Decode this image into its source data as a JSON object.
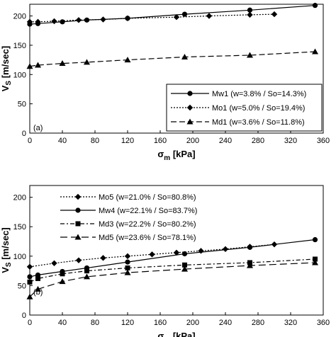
{
  "chart_data": [
    {
      "type": "line",
      "panel_label": "(a)",
      "xlabel_main": "σ",
      "xlabel_sub": "m",
      "xlabel_unit": " [kPa]",
      "ylabel_main": "V",
      "ylabel_sub": "S",
      "ylabel_unit": " [m/sec]",
      "xlim": [
        0,
        360
      ],
      "ylim": [
        0,
        220
      ],
      "xticks": [
        "0",
        "40",
        "80",
        "120",
        "160",
        "200",
        "240",
        "280",
        "320",
        "360"
      ],
      "yticks": [
        "0",
        "50",
        "100",
        "150",
        "200"
      ],
      "legend_position": "bottom-right",
      "series": [
        {
          "name": "Mw1 (w=3.8% / So=14.3%)",
          "marker": "circle",
          "dash": "solid",
          "x": [
            0,
            10,
            40,
            70,
            120,
            190,
            270,
            350
          ],
          "y": [
            186,
            187,
            190,
            193,
            196,
            203,
            210,
            218
          ]
        },
        {
          "name": "Mo1 (w=5.0% / So=19.4%)",
          "marker": "diamond",
          "dash": "dotted",
          "x": [
            0,
            10,
            30,
            60,
            90,
            120,
            180,
            220,
            270,
            300
          ],
          "y": [
            190,
            190,
            191,
            193,
            194,
            196,
            198,
            200,
            202,
            203
          ]
        },
        {
          "name": "Md1 (w=3.6% / So=11.8%)",
          "marker": "triangle",
          "dash": "dashed",
          "x": [
            0,
            10,
            40,
            70,
            120,
            190,
            270,
            350
          ],
          "y": [
            114,
            116,
            119,
            121,
            125,
            130,
            133,
            139
          ]
        }
      ]
    },
    {
      "type": "line",
      "panel_label": "(b)",
      "xlabel_main": "σ",
      "xlabel_sub": "m",
      "xlabel_unit": " [kPa]",
      "ylabel_main": "V",
      "ylabel_sub": "S",
      "ylabel_unit": " [m/sec]",
      "xlim": [
        0,
        360
      ],
      "ylim": [
        0,
        220
      ],
      "xticks": [
        "0",
        "40",
        "80",
        "120",
        "160",
        "200",
        "240",
        "280",
        "320",
        "360"
      ],
      "yticks": [
        "0",
        "50",
        "100",
        "150",
        "200"
      ],
      "legend_position": "top-left",
      "series": [
        {
          "name": "Mo5 (w=21.0% / So=80.8%)",
          "marker": "diamond",
          "dash": "dotted",
          "x": [
            0,
            30,
            60,
            90,
            120,
            150,
            180,
            210,
            240,
            270,
            300
          ],
          "y": [
            82,
            88,
            93,
            97,
            100,
            103,
            106,
            109,
            112,
            116,
            120
          ]
        },
        {
          "name": "Mw4 (w=22.1% / So=83.7%)",
          "marker": "circle",
          "dash": "solid",
          "x": [
            0,
            10,
            40,
            70,
            120,
            190,
            270,
            350
          ],
          "y": [
            65,
            68,
            74,
            80,
            90,
            104,
            115,
            128
          ]
        },
        {
          "name": "Md3 (w=22.2% / So=80.2%)",
          "marker": "square",
          "dash": "dashdot",
          "x": [
            0,
            10,
            40,
            70,
            120,
            190,
            270,
            350
          ],
          "y": [
            56,
            62,
            70,
            75,
            80,
            85,
            89,
            95
          ]
        },
        {
          "name": "Md5 (w=23.6% / So=78.1%)",
          "marker": "triangle",
          "dash": "longdash",
          "x": [
            0,
            10,
            40,
            70,
            120,
            190,
            270,
            350
          ],
          "y": [
            31,
            44,
            57,
            65,
            72,
            78,
            84,
            89
          ]
        }
      ]
    }
  ]
}
